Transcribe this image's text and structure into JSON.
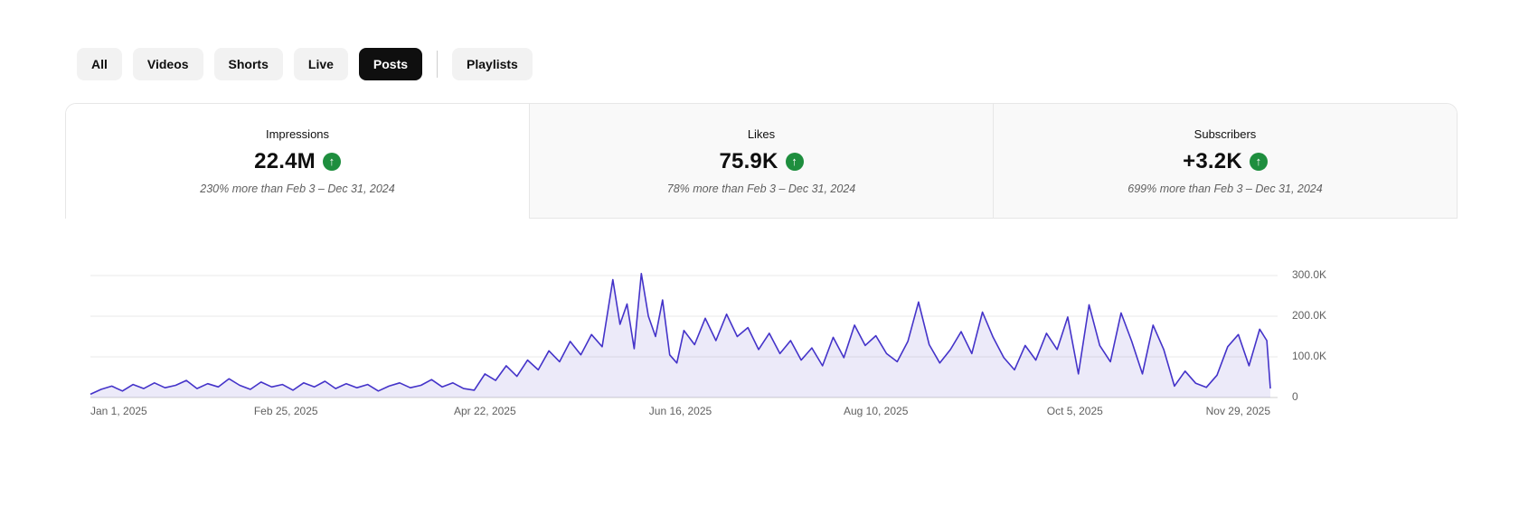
{
  "filter_chips": [
    {
      "label": "All",
      "selected": false
    },
    {
      "label": "Videos",
      "selected": false
    },
    {
      "label": "Shorts",
      "selected": false
    },
    {
      "label": "Live",
      "selected": false
    },
    {
      "label": "Posts",
      "selected": true
    },
    {
      "divider": true
    },
    {
      "label": "Playlists",
      "selected": false
    }
  ],
  "metric_cards": [
    {
      "title": "Impressions",
      "value": "22.4M",
      "change_icon": "up-arrow-green",
      "subtext": "230% more than Feb 3 – Dec 31, 2024",
      "selected": true
    },
    {
      "title": "Likes",
      "value": "75.9K",
      "change_icon": "up-arrow-green",
      "subtext": "78% more than Feb 3 – Dec 31, 2024",
      "selected": false
    },
    {
      "title": "Subscribers",
      "value": "+3.2K",
      "change_icon": "up-arrow-green",
      "subtext": "699% more than Feb 3 – Dec 31, 2024",
      "selected": false
    }
  ],
  "chart_data": {
    "type": "area",
    "metric": "Impressions",
    "x_range": [
      0,
      332
    ],
    "x_ticks": [
      {
        "label": "Jan 1, 2025",
        "day": 0
      },
      {
        "label": "Feb 25, 2025",
        "day": 55
      },
      {
        "label": "Apr 22, 2025",
        "day": 111
      },
      {
        "label": "Jun 16, 2025",
        "day": 166
      },
      {
        "label": "Aug 10, 2025",
        "day": 221
      },
      {
        "label": "Oct 5, 2025",
        "day": 277
      },
      {
        "label": "Nov 29, 2025",
        "day": 332
      }
    ],
    "ylim": [
      0,
      300
    ],
    "y_unit": "K",
    "y_ticks": [
      {
        "value": 300,
        "label": "300.0K"
      },
      {
        "value": 200,
        "label": "200.0K"
      },
      {
        "value": 100,
        "label": "100.0K"
      },
      {
        "value": 0,
        "label": "0"
      }
    ],
    "grid": true,
    "legend": "none",
    "points": [
      [
        0,
        8
      ],
      [
        3,
        20
      ],
      [
        6,
        28
      ],
      [
        9,
        16
      ],
      [
        12,
        32
      ],
      [
        15,
        22
      ],
      [
        18,
        36
      ],
      [
        21,
        24
      ],
      [
        24,
        30
      ],
      [
        27,
        42
      ],
      [
        30,
        22
      ],
      [
        33,
        34
      ],
      [
        36,
        26
      ],
      [
        39,
        46
      ],
      [
        42,
        30
      ],
      [
        45,
        20
      ],
      [
        48,
        38
      ],
      [
        51,
        26
      ],
      [
        54,
        32
      ],
      [
        57,
        18
      ],
      [
        60,
        36
      ],
      [
        63,
        26
      ],
      [
        66,
        40
      ],
      [
        69,
        22
      ],
      [
        72,
        34
      ],
      [
        75,
        24
      ],
      [
        78,
        32
      ],
      [
        81,
        16
      ],
      [
        84,
        28
      ],
      [
        87,
        36
      ],
      [
        90,
        24
      ],
      [
        93,
        30
      ],
      [
        96,
        44
      ],
      [
        99,
        26
      ],
      [
        102,
        36
      ],
      [
        105,
        22
      ],
      [
        108,
        18
      ],
      [
        111,
        58
      ],
      [
        114,
        42
      ],
      [
        117,
        78
      ],
      [
        120,
        52
      ],
      [
        123,
        92
      ],
      [
        126,
        68
      ],
      [
        129,
        115
      ],
      [
        132,
        88
      ],
      [
        135,
        138
      ],
      [
        138,
        105
      ],
      [
        141,
        155
      ],
      [
        144,
        125
      ],
      [
        147,
        290
      ],
      [
        149,
        180
      ],
      [
        151,
        230
      ],
      [
        153,
        120
      ],
      [
        155,
        305
      ],
      [
        157,
        200
      ],
      [
        159,
        150
      ],
      [
        161,
        240
      ],
      [
        163,
        105
      ],
      [
        165,
        85
      ],
      [
        167,
        165
      ],
      [
        170,
        130
      ],
      [
        173,
        195
      ],
      [
        176,
        140
      ],
      [
        179,
        205
      ],
      [
        182,
        150
      ],
      [
        185,
        172
      ],
      [
        188,
        118
      ],
      [
        191,
        158
      ],
      [
        194,
        108
      ],
      [
        197,
        140
      ],
      [
        200,
        92
      ],
      [
        203,
        122
      ],
      [
        206,
        78
      ],
      [
        209,
        148
      ],
      [
        212,
        98
      ],
      [
        215,
        178
      ],
      [
        218,
        128
      ],
      [
        221,
        152
      ],
      [
        224,
        108
      ],
      [
        227,
        88
      ],
      [
        230,
        138
      ],
      [
        233,
        235
      ],
      [
        236,
        130
      ],
      [
        239,
        85
      ],
      [
        242,
        118
      ],
      [
        245,
        162
      ],
      [
        248,
        108
      ],
      [
        251,
        210
      ],
      [
        254,
        148
      ],
      [
        257,
        98
      ],
      [
        260,
        68
      ],
      [
        263,
        128
      ],
      [
        266,
        92
      ],
      [
        269,
        158
      ],
      [
        272,
        118
      ],
      [
        275,
        198
      ],
      [
        278,
        58
      ],
      [
        281,
        228
      ],
      [
        284,
        128
      ],
      [
        287,
        88
      ],
      [
        290,
        208
      ],
      [
        293,
        138
      ],
      [
        296,
        58
      ],
      [
        299,
        178
      ],
      [
        302,
        118
      ],
      [
        305,
        28
      ],
      [
        308,
        65
      ],
      [
        311,
        35
      ],
      [
        314,
        25
      ],
      [
        317,
        55
      ],
      [
        320,
        125
      ],
      [
        323,
        155
      ],
      [
        326,
        78
      ],
      [
        329,
        168
      ],
      [
        331,
        140
      ],
      [
        332,
        22
      ]
    ],
    "colors": {
      "line": "#4433c9",
      "area": "#4433c9",
      "area_opacity": 0.1,
      "grid": "#e8e8e8",
      "baseline": "#cfcfcf",
      "label": "#606060"
    }
  }
}
